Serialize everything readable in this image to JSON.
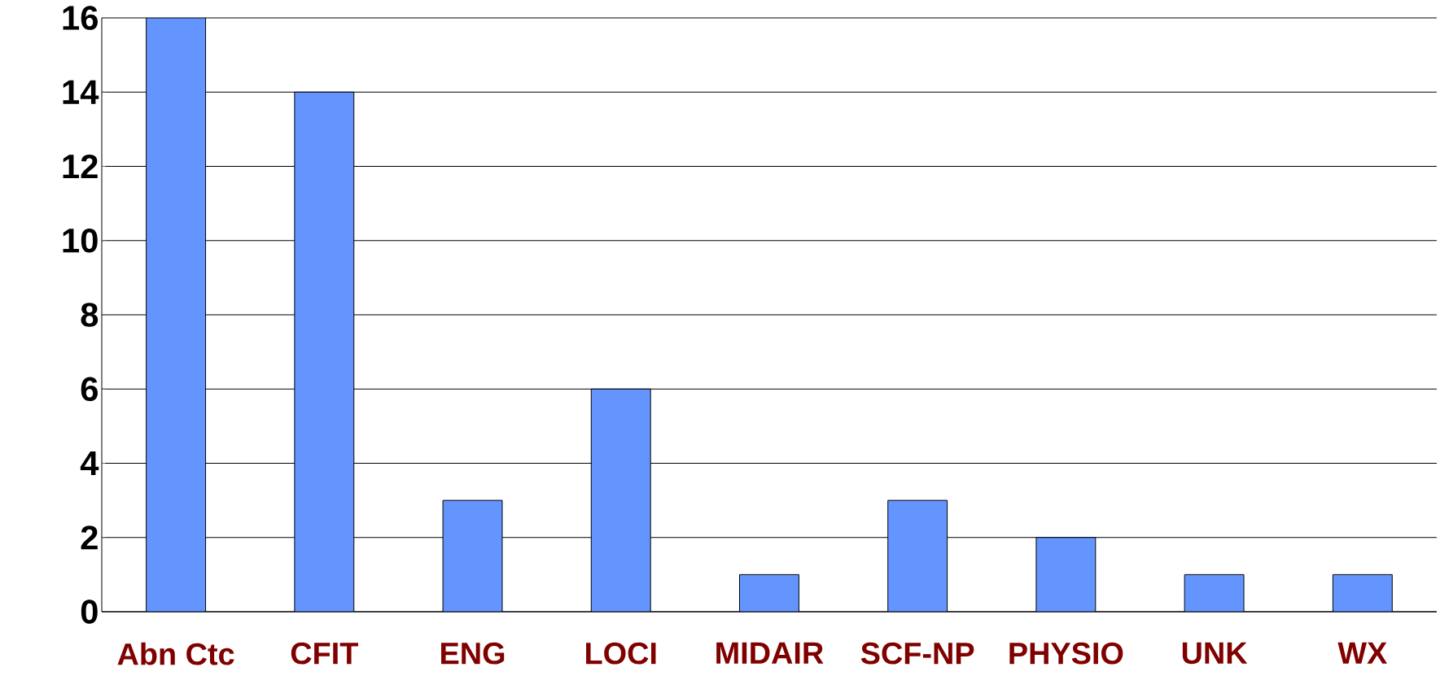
{
  "chart_data": {
    "type": "bar",
    "categories": [
      "Abn Ctc",
      "CFIT",
      "ENG",
      "LOCI",
      "MIDAIR",
      "SCF-NP",
      "PHYSIO",
      "UNK",
      "WX"
    ],
    "values": [
      16,
      14,
      3,
      6,
      1,
      3,
      2,
      1,
      1
    ],
    "color": "#6495ff",
    "ylim": [
      0,
      16
    ],
    "yticks": [
      0,
      2,
      4,
      6,
      8,
      10,
      12,
      14,
      16
    ],
    "grid": "y"
  }
}
